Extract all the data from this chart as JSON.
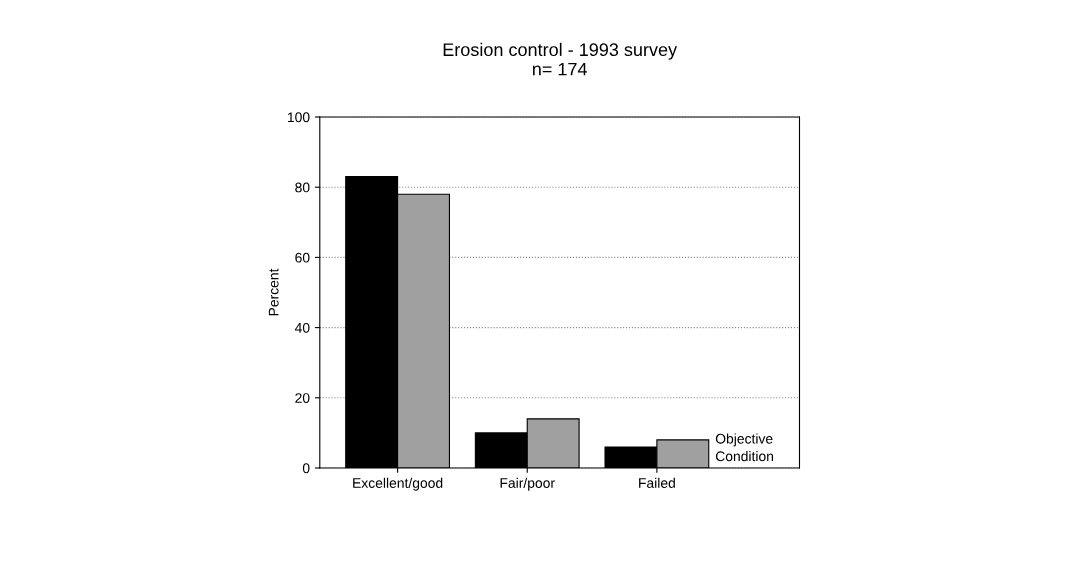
{
  "chart_data": {
    "type": "bar",
    "title": "Erosion control - 1993 survey\nn= 174",
    "ylabel": "Percent",
    "categories": [
      "Excellent/good",
      "Fair/poor",
      "Failed"
    ],
    "series": [
      {
        "name": "Condition",
        "color": "#000000",
        "values": [
          83,
          10,
          6
        ]
      },
      {
        "name": "Objective",
        "color": "#a0a0a0",
        "values": [
          78,
          14,
          8
        ]
      }
    ],
    "ylim": [
      0,
      100
    ],
    "yticks": [
      0,
      20,
      40,
      60,
      80,
      100
    ],
    "grid": "y"
  }
}
